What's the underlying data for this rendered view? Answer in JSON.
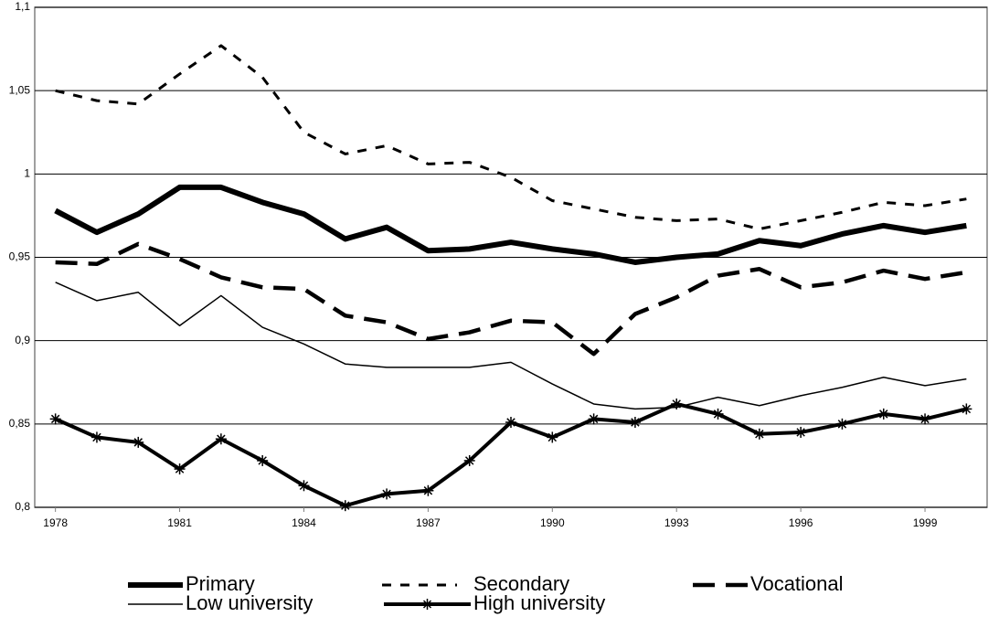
{
  "chart_data": {
    "type": "line",
    "x": [
      1978,
      1979,
      1980,
      1981,
      1982,
      1983,
      1984,
      1985,
      1986,
      1987,
      1988,
      1989,
      1990,
      1991,
      1992,
      1993,
      1994,
      1995,
      1996,
      1997,
      1998,
      1999,
      2000
    ],
    "xlim": [
      1977.5,
      2000.5
    ],
    "xticks": [
      1978,
      1981,
      1984,
      1987,
      1990,
      1993,
      1996,
      1999
    ],
    "ylim": [
      0.8,
      1.1
    ],
    "yticks": [
      {
        "value": 0.8,
        "label": "0,8"
      },
      {
        "value": 0.85,
        "label": "0,85"
      },
      {
        "value": 0.9,
        "label": "0,9"
      },
      {
        "value": 0.95,
        "label": "0,95"
      },
      1,
      {
        "value": 1.05,
        "label": "1,05"
      },
      {
        "value": 1.1,
        "label": "1,1"
      }
    ],
    "grid": true,
    "series": [
      {
        "name": "Primary",
        "color": "#000000",
        "values": [
          0.978,
          0.965,
          0.976,
          0.992,
          0.992,
          0.983,
          0.976,
          0.961,
          0.968,
          0.954,
          0.955,
          0.959,
          0.955,
          0.952,
          0.947,
          0.95,
          0.952,
          0.96,
          0.957,
          0.964,
          0.969,
          0.965,
          0.969
        ]
      },
      {
        "name": "Secondary",
        "color": "#000000",
        "values": [
          1.05,
          1.044,
          1.042,
          1.06,
          1.077,
          1.058,
          1.025,
          1.012,
          1.017,
          1.006,
          1.007,
          0.998,
          0.984,
          0.979,
          0.974,
          0.972,
          0.973,
          0.967,
          0.972,
          0.977,
          0.983,
          0.981,
          0.985
        ]
      },
      {
        "name": "Vocational",
        "color": "#000000",
        "values": [
          0.947,
          0.946,
          0.958,
          0.949,
          0.938,
          0.932,
          0.931,
          0.915,
          0.911,
          0.901,
          0.905,
          0.912,
          0.911,
          0.892,
          0.916,
          0.926,
          0.939,
          0.943,
          0.932,
          0.935,
          0.942,
          0.937,
          0.941
        ]
      },
      {
        "name": "Low university",
        "color": "#000000",
        "values": [
          0.935,
          0.924,
          0.929,
          0.909,
          0.927,
          0.908,
          0.898,
          0.886,
          0.884,
          0.884,
          0.884,
          0.887,
          0.874,
          0.862,
          0.859,
          0.86,
          0.866,
          0.861,
          0.867,
          0.872,
          0.878,
          0.873,
          0.877
        ]
      },
      {
        "name": "High university",
        "color": "#000000",
        "values": [
          0.853,
          0.842,
          0.839,
          0.823,
          0.841,
          0.828,
          0.813,
          0.801,
          0.808,
          0.81,
          0.828,
          0.851,
          0.842,
          0.853,
          0.851,
          0.862,
          0.856,
          0.844,
          0.845,
          0.85,
          0.856,
          0.853,
          0.859
        ]
      }
    ]
  }
}
